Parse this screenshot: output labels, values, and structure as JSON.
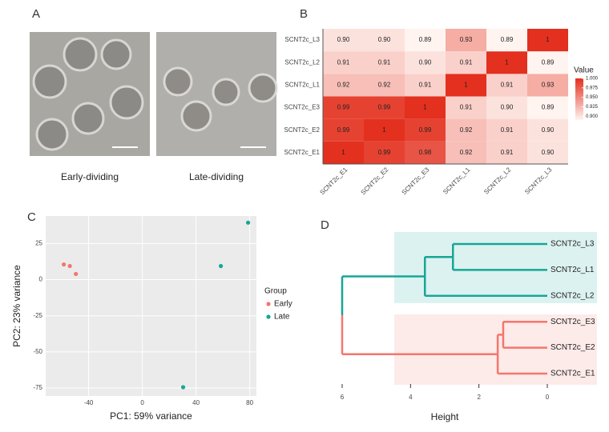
{
  "panel_labels": [
    "A",
    "B",
    "C",
    "D"
  ],
  "images": [
    {
      "caption": "Early-dividing"
    },
    {
      "caption": "Late-dividing"
    }
  ],
  "chart_data": [
    {
      "type": "heatmap",
      "x_categories": [
        "SCNT2c_E1",
        "SCNT2c_E2",
        "SCNT2c_E3",
        "SCNT2c_L1",
        "SCNT2c_L2",
        "SCNT2c_L3"
      ],
      "y_categories": [
        "SCNT2c_E1",
        "SCNT2c_E2",
        "SCNT2c_E3",
        "SCNT2c_L1",
        "SCNT2c_L2",
        "SCNT2c_L3"
      ],
      "values": [
        [
          1,
          0.99,
          0.98,
          0.92,
          0.91,
          0.9
        ],
        [
          0.99,
          1,
          0.99,
          0.92,
          0.91,
          0.9
        ],
        [
          0.99,
          0.99,
          1,
          0.91,
          0.9,
          0.89
        ],
        [
          0.92,
          0.92,
          0.91,
          1,
          0.91,
          0.93
        ],
        [
          0.91,
          0.91,
          0.9,
          0.91,
          1,
          0.89
        ],
        [
          0.9,
          0.9,
          0.89,
          0.93,
          0.89,
          1
        ]
      ],
      "value_labels": [
        [
          "1",
          "0.99",
          "0.98",
          "0.92",
          "0.91",
          "0.90"
        ],
        [
          "0.99",
          "1",
          "0.99",
          "0.92",
          "0.91",
          "0.90"
        ],
        [
          "0.99",
          "0.99",
          "1",
          "0.91",
          "0.90",
          "0.89"
        ],
        [
          "0.92",
          "0.92",
          "0.91",
          "1",
          "0.91",
          "0.93"
        ],
        [
          "0.91",
          "0.91",
          "0.90",
          "0.91",
          "1",
          "0.89"
        ],
        [
          "0.90",
          "0.90",
          "0.89",
          "0.93",
          "0.89",
          "1"
        ]
      ],
      "legend_title": "Value",
      "clim": [
        0.89,
        1
      ],
      "colors": [
        "#fff4f0",
        "#e3301f"
      ],
      "cticks": [
        {
          "value": 1,
          "label": "1.000"
        },
        {
          "value": 0.975,
          "label": "0.975"
        },
        {
          "value": 0.95,
          "label": "0.950"
        },
        {
          "value": 0.925,
          "label": "0.925"
        },
        {
          "value": 0.9,
          "label": "0.900"
        }
      ]
    },
    {
      "type": "scatter",
      "xlabel": "PC1: 59% variance",
      "ylabel": "PC2: 23% variance",
      "legend_title": "Group",
      "series": [
        {
          "name": "Early",
          "color": "#f4766d",
          "x": [
            -58.5,
            -54,
            -49.5
          ],
          "values": [
            10.5,
            9.4,
            3.9
          ]
        },
        {
          "name": "Late",
          "color": "#17a697",
          "x": [
            78.8,
            58.5,
            30.4
          ],
          "values": [
            39.4,
            9.4,
            -74.4
          ]
        }
      ],
      "xlim": [
        -72,
        85
      ],
      "ylim": [
        -80.5,
        44
      ],
      "xticks": [
        -40,
        0,
        40,
        80
      ],
      "yticks": [
        25,
        0,
        -25,
        -50,
        -75
      ],
      "grid": true
    },
    {
      "type": "dendrogram",
      "xlabel": "Height",
      "leaves": [
        "SCNT2c_L3",
        "SCNT2c_L1",
        "SCNT2c_L2",
        "SCNT2c_E3",
        "SCNT2c_E2",
        "SCNT2c_E1"
      ],
      "leaf_colors": [
        "#17a697",
        "#17a697",
        "#17a697",
        "#f4766d",
        "#f4766d",
        "#f4766d"
      ],
      "merges": [
        {
          "children": [
            0,
            1
          ],
          "height": 2.76
        },
        {
          "children": [
            6,
            2
          ],
          "height": 3.58
        },
        {
          "children": [
            3,
            4
          ],
          "height": 1.29
        },
        {
          "children": [
            8,
            5
          ],
          "height": 1.45
        },
        {
          "children": [
            7,
            9
          ],
          "height": 6
        }
      ],
      "xlim": [
        6,
        0
      ],
      "xticks": [
        6,
        4,
        2,
        0
      ]
    }
  ]
}
